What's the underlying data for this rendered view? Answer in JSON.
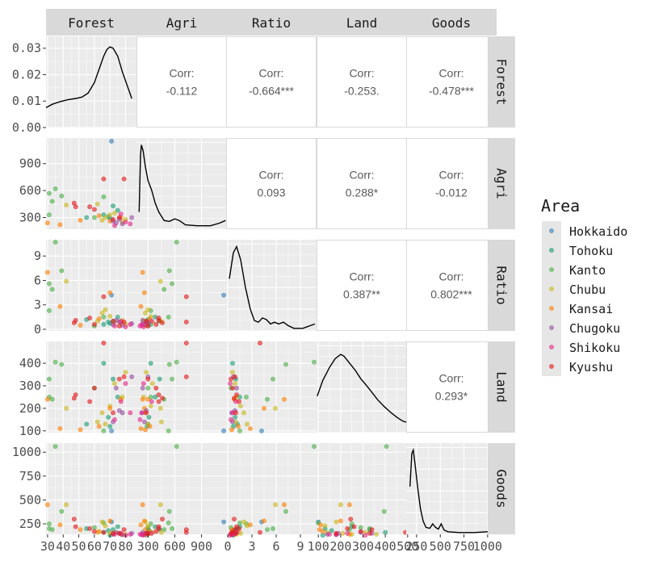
{
  "chart_data": {
    "type": "scatter",
    "variables": [
      "Forest",
      "Agri",
      "Ratio",
      "Land",
      "Goods"
    ],
    "legend": {
      "title": "Area",
      "position": "right",
      "groups": [
        "Hokkaido",
        "Tohoku",
        "Kanto",
        "Chubu",
        "Kansai",
        "Chugoku",
        "Shikoku",
        "Kyushu"
      ],
      "colors": [
        "#377eb8",
        "#1b9e77",
        "#4daf4a",
        "#c9b81d",
        "#ff7f00",
        "#984ea3",
        "#e7298a",
        "#e41a1c"
      ]
    },
    "axes": {
      "Forest": {
        "range": [
          29,
          87
        ],
        "ticks": [
          30,
          40,
          50,
          60,
          70,
          80
        ],
        "tick_labels": [
          "30",
          "40",
          "50",
          "60",
          "70",
          "80"
        ]
      },
      "Agri": {
        "range": [
          170,
          1185
        ],
        "ticks": [
          300,
          600,
          900
        ],
        "tick_labels": [
          "300",
          "600",
          "900"
        ]
      },
      "Ratio": {
        "range": [
          -0.2,
          11
        ],
        "ticks": [
          0,
          3,
          6,
          9
        ],
        "tick_labels": [
          "0",
          "3",
          "6",
          "9"
        ]
      },
      "Land": {
        "range": [
          92,
          497
        ],
        "ticks": [
          100,
          200,
          300,
          400,
          500
        ],
        "tick_labels": [
          "100",
          "200",
          "300",
          "400",
          "500"
        ]
      },
      "Goods": {
        "range": [
          140,
          1095
        ],
        "ticks": [
          250,
          500,
          750,
          1000
        ],
        "tick_labels": [
          "250",
          "500",
          "750",
          "1000"
        ]
      }
    },
    "density_y_axis": {
      "range": [
        0,
        0.0345
      ],
      "ticks": [
        0,
        0.01,
        0.02,
        0.03
      ],
      "tick_labels": [
        "0.00",
        "0.01",
        "0.02",
        "0.03"
      ]
    },
    "densities": {
      "Forest": [
        [
          29,
          0.0075
        ],
        [
          33,
          0.0088
        ],
        [
          38,
          0.0098
        ],
        [
          43,
          0.0105
        ],
        [
          48,
          0.011
        ],
        [
          52,
          0.0115
        ],
        [
          56,
          0.013
        ],
        [
          60,
          0.017
        ],
        [
          63,
          0.022
        ],
        [
          66,
          0.027
        ],
        [
          68,
          0.0295
        ],
        [
          70,
          0.0305
        ],
        [
          72,
          0.03
        ],
        [
          75,
          0.027
        ],
        [
          78,
          0.021
        ],
        [
          81,
          0.016
        ],
        [
          84,
          0.011
        ]
      ],
      "Agri": [
        [
          200,
          0.2
        ],
        [
          215,
          0.85
        ],
        [
          225,
          0.97
        ],
        [
          245,
          0.9
        ],
        [
          270,
          0.72
        ],
        [
          300,
          0.56
        ],
        [
          340,
          0.45
        ],
        [
          380,
          0.3
        ],
        [
          420,
          0.2
        ],
        [
          480,
          0.1
        ],
        [
          540,
          0.09
        ],
        [
          600,
          0.12
        ],
        [
          650,
          0.1
        ],
        [
          720,
          0.05
        ],
        [
          850,
          0.04
        ],
        [
          1000,
          0.04
        ],
        [
          1100,
          0.07
        ],
        [
          1170,
          0.1
        ]
      ],
      "Ratio": [
        [
          0.2,
          0.6
        ],
        [
          0.7,
          0.9
        ],
        [
          1.1,
          0.97
        ],
        [
          1.6,
          0.82
        ],
        [
          2.2,
          0.5
        ],
        [
          2.8,
          0.25
        ],
        [
          3.3,
          0.12
        ],
        [
          3.8,
          0.1
        ],
        [
          4.3,
          0.15
        ],
        [
          4.8,
          0.13
        ],
        [
          5.3,
          0.08
        ],
        [
          5.8,
          0.1
        ],
        [
          6.3,
          0.08
        ],
        [
          6.9,
          0.1
        ],
        [
          7.5,
          0.06
        ],
        [
          8.2,
          0.03
        ],
        [
          9.3,
          0.03
        ],
        [
          10.2,
          0.06
        ],
        [
          10.8,
          0.08
        ]
      ],
      "Land": [
        [
          95,
          0.42
        ],
        [
          120,
          0.6
        ],
        [
          150,
          0.75
        ],
        [
          175,
          0.85
        ],
        [
          200,
          0.9
        ],
        [
          215,
          0.88
        ],
        [
          240,
          0.8
        ],
        [
          265,
          0.72
        ],
        [
          290,
          0.62
        ],
        [
          310,
          0.56
        ],
        [
          335,
          0.48
        ],
        [
          365,
          0.38
        ],
        [
          395,
          0.3
        ],
        [
          425,
          0.23
        ],
        [
          455,
          0.17
        ],
        [
          480,
          0.13
        ],
        [
          496,
          0.12
        ]
      ],
      "Goods": [
        [
          180,
          0.55
        ],
        [
          200,
          0.93
        ],
        [
          215,
          0.97
        ],
        [
          235,
          0.8
        ],
        [
          260,
          0.55
        ],
        [
          290,
          0.3
        ],
        [
          320,
          0.15
        ],
        [
          350,
          0.08
        ],
        [
          390,
          0.07
        ],
        [
          420,
          0.12
        ],
        [
          450,
          0.08
        ],
        [
          480,
          0.06
        ],
        [
          510,
          0.12
        ],
        [
          540,
          0.05
        ],
        [
          580,
          0.03
        ],
        [
          700,
          0.02
        ],
        [
          850,
          0.02
        ],
        [
          1000,
          0.03
        ],
        [
          1080,
          0.07
        ]
      ]
    },
    "correlations": [
      {
        "row": "Forest",
        "col": "Agri",
        "label": "Corr:",
        "value": "-0.112"
      },
      {
        "row": "Forest",
        "col": "Ratio",
        "label": "Corr:",
        "value": "-0.664***"
      },
      {
        "row": "Forest",
        "col": "Land",
        "label": "Corr:",
        "value": "-0.253."
      },
      {
        "row": "Forest",
        "col": "Goods",
        "label": "Corr:",
        "value": "-0.478***"
      },
      {
        "row": "Agri",
        "col": "Ratio",
        "label": "Corr:",
        "value": "0.093"
      },
      {
        "row": "Agri",
        "col": "Land",
        "label": "Corr:",
        "value": "0.288*"
      },
      {
        "row": "Agri",
        "col": "Goods",
        "label": "Corr:",
        "value": "-0.012"
      },
      {
        "row": "Ratio",
        "col": "Land",
        "label": "Corr:",
        "value": "0.387**"
      },
      {
        "row": "Ratio",
        "col": "Goods",
        "label": "Corr:",
        "value": "0.802***"
      },
      {
        "row": "Land",
        "col": "Goods",
        "label": "Corr:",
        "value": "0.293*"
      }
    ],
    "observations": [
      {
        "area": "Hokkaido",
        "Forest": 71,
        "Agri": 1150,
        "Ratio": 4.2,
        "Land": 100,
        "Goods": 270
      },
      {
        "area": "Tohoku",
        "Forest": 66,
        "Agri": 330,
        "Ratio": 0.6,
        "Land": 400,
        "Goods": 160
      },
      {
        "area": "Tohoku",
        "Forest": 72,
        "Agri": 430,
        "Ratio": 1.0,
        "Land": 330,
        "Goods": 190
      },
      {
        "area": "Tohoku",
        "Forest": 75,
        "Agri": 380,
        "Ratio": 1.5,
        "Land": 250,
        "Goods": 220
      },
      {
        "area": "Tohoku",
        "Forest": 70,
        "Agri": 290,
        "Ratio": 0.7,
        "Land": 120,
        "Goods": 130
      },
      {
        "area": "Tohoku",
        "Forest": 55,
        "Agri": 300,
        "Ratio": 1.2,
        "Land": 130,
        "Goods": 200
      },
      {
        "area": "Tohoku",
        "Forest": 69,
        "Agri": 310,
        "Ratio": 0.9,
        "Land": 160,
        "Goods": 180
      },
      {
        "area": "Kanto",
        "Forest": 31,
        "Agri": 570,
        "Ratio": 5.6,
        "Land": 330,
        "Goods": 200
      },
      {
        "area": "Kanto",
        "Forest": 33,
        "Agri": 480,
        "Ratio": 4.9,
        "Land": 240,
        "Goods": 190
      },
      {
        "area": "Kanto",
        "Forest": 31,
        "Agri": 330,
        "Ratio": 2.3,
        "Land": 250,
        "Goods": 250
      },
      {
        "area": "Kanto",
        "Forest": 35,
        "Agri": 620,
        "Ratio": 10.7,
        "Land": 405,
        "Goods": 1060
      },
      {
        "area": "Kanto",
        "Forest": 39,
        "Agri": 540,
        "Ratio": 7.2,
        "Land": 395,
        "Goods": 380
      },
      {
        "area": "Kanto",
        "Forest": 66,
        "Agri": 530,
        "Ratio": 1.5,
        "Land": 100,
        "Goods": 260
      },
      {
        "area": "Kanto",
        "Forest": 60,
        "Agri": 300,
        "Ratio": 0.4,
        "Land": 290,
        "Goods": 210
      },
      {
        "area": "Chubu",
        "Forest": 42,
        "Agri": 440,
        "Ratio": 5.9,
        "Land": 200,
        "Goods": 450
      },
      {
        "area": "Chubu",
        "Forest": 62,
        "Agri": 450,
        "Ratio": 1.0,
        "Land": 140,
        "Goods": 160
      },
      {
        "area": "Chubu",
        "Forest": 65,
        "Agri": 270,
        "Ratio": 2.0,
        "Land": 180,
        "Goods": 270
      },
      {
        "area": "Chubu",
        "Forest": 78,
        "Agri": 250,
        "Ratio": 1.1,
        "Land": 250,
        "Goods": 140
      },
      {
        "area": "Chubu",
        "Forest": 80,
        "Agri": 280,
        "Ratio": 0.6,
        "Land": 360,
        "Goods": 140
      },
      {
        "area": "Chubu",
        "Forest": 70,
        "Agri": 330,
        "Ratio": 1.6,
        "Land": 210,
        "Goods": 150
      },
      {
        "area": "Chubu",
        "Forest": 73,
        "Agri": 350,
        "Ratio": 0.9,
        "Land": 310,
        "Goods": 160
      },
      {
        "area": "Chubu",
        "Forest": 67,
        "Agri": 300,
        "Ratio": 2.4,
        "Land": 130,
        "Goods": 230
      },
      {
        "area": "Kansai",
        "Forest": 30,
        "Agri": 240,
        "Ratio": 7.0,
        "Land": 240,
        "Goods": 450
      },
      {
        "area": "Kansai",
        "Forest": 38,
        "Agri": 220,
        "Ratio": 2.8,
        "Land": 110,
        "Goods": 240
      },
      {
        "area": "Kansai",
        "Forest": 51,
        "Agri": 270,
        "Ratio": 0.5,
        "Land": 105,
        "Goods": 190
      },
      {
        "area": "Kansai",
        "Forest": 63,
        "Agri": 320,
        "Ratio": 1.3,
        "Land": 120,
        "Goods": 170
      },
      {
        "area": "Kansai",
        "Forest": 70,
        "Agri": 260,
        "Ratio": 4.5,
        "Land": 200,
        "Goods": 280
      },
      {
        "area": "Kansai",
        "Forest": 77,
        "Agri": 300,
        "Ratio": 0.8,
        "Land": 240,
        "Goods": 140
      },
      {
        "area": "Chugoku",
        "Forest": 72,
        "Agri": 260,
        "Ratio": 0.6,
        "Land": 140,
        "Goods": 140
      },
      {
        "area": "Chugoku",
        "Forest": 76,
        "Agri": 280,
        "Ratio": 0.9,
        "Land": 190,
        "Goods": 150
      },
      {
        "area": "Chugoku",
        "Forest": 78,
        "Agri": 230,
        "Ratio": 0.5,
        "Land": 180,
        "Goods": 135
      },
      {
        "area": "Chugoku",
        "Forest": 74,
        "Agri": 240,
        "Ratio": 1.1,
        "Land": 290,
        "Goods": 160
      },
      {
        "area": "Chugoku",
        "Forest": 84,
        "Agri": 300,
        "Ratio": 0.7,
        "Land": 340,
        "Goods": 150
      },
      {
        "area": "Shikoku",
        "Forest": 73,
        "Agri": 210,
        "Ratio": 0.4,
        "Land": 150,
        "Goods": 140
      },
      {
        "area": "Shikoku",
        "Forest": 77,
        "Agri": 340,
        "Ratio": 1.0,
        "Land": 230,
        "Goods": 150
      },
      {
        "area": "Shikoku",
        "Forest": 80,
        "Agri": 250,
        "Ratio": 0.3,
        "Land": 310,
        "Goods": 130
      },
      {
        "area": "Shikoku",
        "Forest": 83,
        "Agri": 230,
        "Ratio": 0.6,
        "Land": 180,
        "Goods": 140
      },
      {
        "area": "Kyushu",
        "Forest": 47,
        "Agri": 460,
        "Ratio": 0.8,
        "Land": 245,
        "Goods": 300
      },
      {
        "area": "Kyushu",
        "Forest": 48,
        "Agri": 420,
        "Ratio": 1.1,
        "Land": 260,
        "Goods": 220
      },
      {
        "area": "Kyushu",
        "Forest": 66,
        "Agri": 730,
        "Ratio": 4.0,
        "Land": 490,
        "Goods": 160
      },
      {
        "area": "Kyushu",
        "Forest": 79,
        "Agri": 730,
        "Ratio": 0.9,
        "Land": 340,
        "Goods": 190
      },
      {
        "area": "Kyushu",
        "Forest": 60,
        "Agri": 390,
        "Ratio": 0.6,
        "Land": 290,
        "Goods": 170
      },
      {
        "area": "Kyushu",
        "Forest": 76,
        "Agri": 300,
        "Ratio": 0.4,
        "Land": 330,
        "Goods": 150
      },
      {
        "area": "Kyushu",
        "Forest": 72,
        "Agri": 280,
        "Ratio": 1.0,
        "Land": 180,
        "Goods": 150
      },
      {
        "area": "Kyushu",
        "Forest": 57,
        "Agri": 420,
        "Ratio": 1.4,
        "Land": 230,
        "Goods": 200
      }
    ]
  }
}
